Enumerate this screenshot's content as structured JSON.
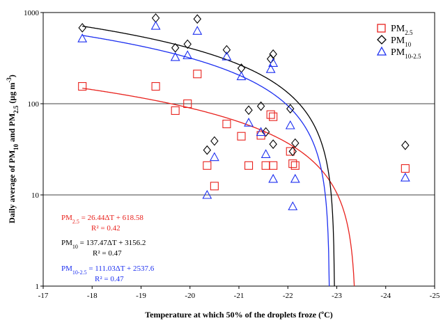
{
  "chart_data": {
    "type": "scatter",
    "xlabel": "Temperature at which 50% of the droplets froze (ºC)",
    "ylabel_main": "Daily average of PM",
    "ylabel_sub1": "10",
    "ylabel_mid": " and PM",
    "ylabel_sub2": "2.5",
    "ylabel_unit_pre": " (µg m",
    "ylabel_unit_sup": "-3",
    "ylabel_unit_post": ")",
    "xlim": [
      -17,
      -25
    ],
    "ylim": [
      1,
      1000
    ],
    "yscale": "log",
    "x_ticks": [
      {
        "value": -17,
        "label": "-17"
      },
      {
        "value": -18,
        "label": "-18"
      },
      {
        "value": -19,
        "label": "-19"
      },
      {
        "value": -20,
        "label": "-20"
      },
      {
        "value": -21,
        "label": "-21"
      },
      {
        "value": -22,
        "label": "-22"
      },
      {
        "value": -23,
        "label": "-23"
      },
      {
        "value": -24,
        "label": "-24"
      },
      {
        "value": -25,
        "label": "-25"
      }
    ],
    "y_ticks": [
      {
        "value": 1,
        "label": "1"
      },
      {
        "value": 10,
        "label": "10"
      },
      {
        "value": 100,
        "label": "100"
      },
      {
        "value": 1000,
        "label": "1000"
      }
    ],
    "grid": "horizontal major lines",
    "legend_position": "top-right",
    "series": [
      {
        "key": "pm25",
        "label_main": "PM",
        "label_sub": "2.5",
        "marker": "square",
        "color": "#e8211c",
        "points": [
          {
            "x": -17.8,
            "y": 155
          },
          {
            "x": -19.3,
            "y": 155
          },
          {
            "x": -19.7,
            "y": 84
          },
          {
            "x": -19.95,
            "y": 100
          },
          {
            "x": -20.15,
            "y": 212
          },
          {
            "x": -20.35,
            "y": 21
          },
          {
            "x": -20.5,
            "y": 12.5
          },
          {
            "x": -20.75,
            "y": 60
          },
          {
            "x": -21.05,
            "y": 44
          },
          {
            "x": -21.2,
            "y": 21
          },
          {
            "x": -21.45,
            "y": 45
          },
          {
            "x": -21.55,
            "y": 21
          },
          {
            "x": -21.65,
            "y": 76
          },
          {
            "x": -21.7,
            "y": 72
          },
          {
            "x": -21.7,
            "y": 21
          },
          {
            "x": -22.05,
            "y": 30
          },
          {
            "x": -22.1,
            "y": 22
          },
          {
            "x": -22.15,
            "y": 21
          },
          {
            "x": -24.4,
            "y": 19.5
          }
        ],
        "fit": {
          "slope": 26.44,
          "intercept": 618.58
        },
        "equation": {
          "name": "PM",
          "sub": "2.5",
          "rhs": " = 26.44ΔT + 618.58",
          "r2": "R² = 0.42"
        }
      },
      {
        "key": "pm10",
        "label_main": "PM",
        "label_sub": "10",
        "marker": "diamond",
        "color": "#000000",
        "points": [
          {
            "x": -17.8,
            "y": 680
          },
          {
            "x": -19.3,
            "y": 870
          },
          {
            "x": -19.7,
            "y": 410
          },
          {
            "x": -19.95,
            "y": 450
          },
          {
            "x": -20.15,
            "y": 850
          },
          {
            "x": -20.35,
            "y": 31
          },
          {
            "x": -20.5,
            "y": 39
          },
          {
            "x": -20.75,
            "y": 390
          },
          {
            "x": -21.05,
            "y": 245
          },
          {
            "x": -21.2,
            "y": 85
          },
          {
            "x": -21.45,
            "y": 94
          },
          {
            "x": -21.55,
            "y": 49
          },
          {
            "x": -21.65,
            "y": 310
          },
          {
            "x": -21.7,
            "y": 350
          },
          {
            "x": -21.7,
            "y": 36
          },
          {
            "x": -22.05,
            "y": 88
          },
          {
            "x": -22.1,
            "y": 30
          },
          {
            "x": -22.15,
            "y": 37
          },
          {
            "x": -24.4,
            "y": 35
          }
        ],
        "fit": {
          "slope": 137.47,
          "intercept": 3156.2
        },
        "equation": {
          "name": "PM",
          "sub": "10",
          "rhs": " = 137.47ΔT + 3156.2",
          "r2": "R² = 0.47"
        }
      },
      {
        "key": "pm1025",
        "label_main": "PM",
        "label_sub": "10-2.5",
        "marker": "triangle",
        "color": "#1c2ff0",
        "points": [
          {
            "x": -17.8,
            "y": 520
          },
          {
            "x": -19.3,
            "y": 715
          },
          {
            "x": -19.7,
            "y": 325
          },
          {
            "x": -19.95,
            "y": 340
          },
          {
            "x": -20.15,
            "y": 630
          },
          {
            "x": -20.35,
            "y": 10
          },
          {
            "x": -20.5,
            "y": 26
          },
          {
            "x": -20.75,
            "y": 330
          },
          {
            "x": -21.05,
            "y": 200
          },
          {
            "x": -21.2,
            "y": 62
          },
          {
            "x": -21.45,
            "y": 49
          },
          {
            "x": -21.55,
            "y": 28
          },
          {
            "x": -21.65,
            "y": 240
          },
          {
            "x": -21.7,
            "y": 280
          },
          {
            "x": -21.7,
            "y": 15
          },
          {
            "x": -22.05,
            "y": 58
          },
          {
            "x": -22.1,
            "y": 7.5
          },
          {
            "x": -22.15,
            "y": 15
          },
          {
            "x": -24.4,
            "y": 15.5
          }
        ],
        "fit": {
          "slope": 111.03,
          "intercept": 2537.6
        },
        "equation": {
          "name": "PM",
          "sub": "10-2.5",
          "rhs": " = 111.03ΔT + 2537.6",
          "r2": "R² = 0.47"
        }
      }
    ]
  }
}
